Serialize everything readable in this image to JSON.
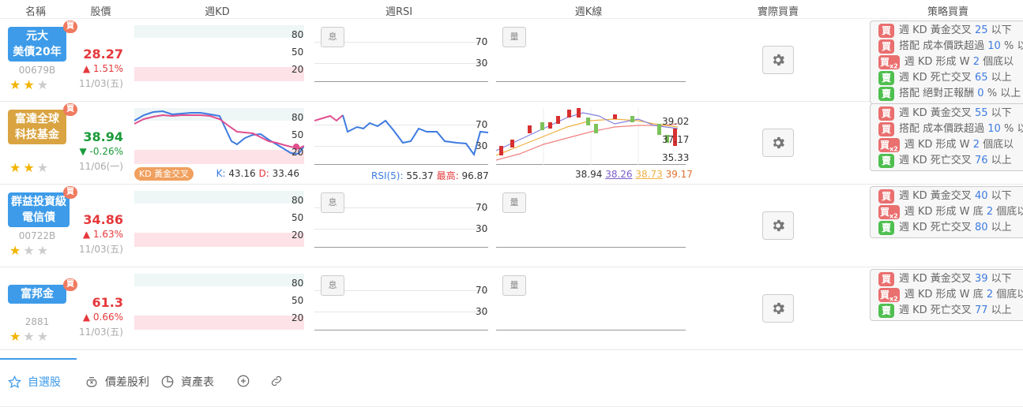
{
  "headers": {
    "name": "名稱",
    "price": "股價",
    "kd": "週KD",
    "rsi": "週RSI",
    "kline": "週K線",
    "actual": "實際買賣",
    "strategy": "策略買賣"
  },
  "kd_levels": [
    "80",
    "50",
    "20"
  ],
  "rsi_levels": [
    "70",
    "30"
  ],
  "rsi_button": "息",
  "kline_button": "量",
  "stocks": [
    {
      "name_line1": "元大",
      "name_line2": "美債20年",
      "badge_color": "blue",
      "buy_tag": "買",
      "code": "00679B",
      "stars": 2,
      "price": "28.27",
      "change": "1.51%",
      "direction": "up",
      "date": "11/03(五)",
      "strategy": [
        {
          "tag": "買",
          "type": "buy",
          "x2": false,
          "text": "週 KD 黃金交叉",
          "num": "25",
          "suffix": "以下"
        },
        {
          "tag": "買",
          "type": "buy",
          "x2": false,
          "text": "搭配 成本價跌超過",
          "num": "10",
          "suffix": "% 以"
        },
        {
          "tag": "買",
          "type": "buy",
          "x2": true,
          "text": "週 KD 形成 W",
          "num": "2",
          "suffix": "個底以"
        },
        {
          "tag": "賣",
          "type": "sell",
          "x2": false,
          "text": "週 KD 死亡交叉",
          "num": "65",
          "suffix": "以上"
        },
        {
          "tag": "賣",
          "type": "sell",
          "x2": false,
          "text": "搭配 絕對正報酬",
          "num": "0",
          "suffix": "% 以上"
        }
      ]
    },
    {
      "name_line1": "富達全球",
      "name_line2": "科技基金",
      "badge_color": "gold",
      "buy_tag": "買",
      "code": "",
      "stars": 2,
      "price": "38.94",
      "change": "-0.26%",
      "direction": "down",
      "date": "11/06(一)",
      "kd_badge": "KD 黃金交叉",
      "kd_k_label": "K:",
      "kd_k": "43.16",
      "kd_d_label": "D:",
      "kd_d": "33.46",
      "rsi_label": "RSI(5):",
      "rsi_val": "55.37",
      "rsi_high_label": "最高:",
      "rsi_high": "96.87",
      "kline_high": "39.02",
      "kline_mid": "37.17",
      "kline_low": "35.33",
      "kline_prices": [
        "38.94",
        "38.26",
        "38.73",
        "39.17"
      ],
      "strategy": [
        {
          "tag": "買",
          "type": "buy",
          "x2": false,
          "text": "週 KD 黃金交叉",
          "num": "55",
          "suffix": "以下"
        },
        {
          "tag": "買",
          "type": "buy",
          "x2": false,
          "text": "搭配 成本價跌超過",
          "num": "10",
          "suffix": "% 以"
        },
        {
          "tag": "買",
          "type": "buy",
          "x2": true,
          "text": "週 KD 形成 W",
          "num": "2",
          "suffix": "個底以"
        },
        {
          "tag": "賣",
          "type": "sell",
          "x2": false,
          "text": "週 KD 死亡交叉",
          "num": "76",
          "suffix": "以上"
        }
      ]
    },
    {
      "name_line1": "群益投資級",
      "name_line2": "電信債",
      "badge_color": "blue",
      "buy_tag": "買",
      "code": "00722B",
      "stars": 1,
      "price": "34.86",
      "change": "1.63%",
      "direction": "up",
      "date": "11/03(五)",
      "strategy": [
        {
          "tag": "買",
          "type": "buy",
          "x2": false,
          "text": "週 KD 黃金交叉",
          "num": "40",
          "suffix": "以下"
        },
        {
          "tag": "買",
          "type": "buy",
          "x2": true,
          "text": "週 KD 形成 W 底",
          "num": "2",
          "suffix": "個底以"
        },
        {
          "tag": "賣",
          "type": "sell",
          "x2": false,
          "text": "週 KD 死亡交叉",
          "num": "80",
          "suffix": "以上"
        }
      ]
    },
    {
      "name_line1": "富邦金",
      "name_line2": "",
      "badge_color": "blue",
      "buy_tag": "買",
      "code": "2881",
      "stars": 1,
      "price": "61.3",
      "change": "0.66%",
      "direction": "up",
      "date": "11/03(五)",
      "strategy": [
        {
          "tag": "買",
          "type": "buy",
          "x2": false,
          "text": "週 KD 黃金交叉",
          "num": "39",
          "suffix": "以下"
        },
        {
          "tag": "買",
          "type": "buy",
          "x2": true,
          "text": "週 KD 形成 W 底",
          "num": "2",
          "suffix": "個底以"
        },
        {
          "tag": "賣",
          "type": "sell",
          "x2": false,
          "text": "週 KD 死亡交叉",
          "num": "77",
          "suffix": "以上"
        }
      ]
    }
  ],
  "tabs": [
    {
      "label": "自選股",
      "icon": "star-icon",
      "active": true
    },
    {
      "label": "價差股利",
      "icon": "money-bag-icon",
      "active": false
    },
    {
      "label": "資產表",
      "icon": "pie-chart-icon",
      "active": false
    },
    {
      "label": "",
      "icon": "add-circle-icon",
      "active": false
    },
    {
      "label": "",
      "icon": "link-icon",
      "active": false
    }
  ],
  "colors": {
    "accent_blue": "#3d9be9",
    "gold": "#d9a441",
    "up": "#e5383b",
    "down": "#1a9a3a",
    "buy_tag": "#ea6f6f",
    "sell_tag": "#4fbf4f",
    "kd_k": "#3d7be0",
    "kd_d": "#e04f8f"
  }
}
